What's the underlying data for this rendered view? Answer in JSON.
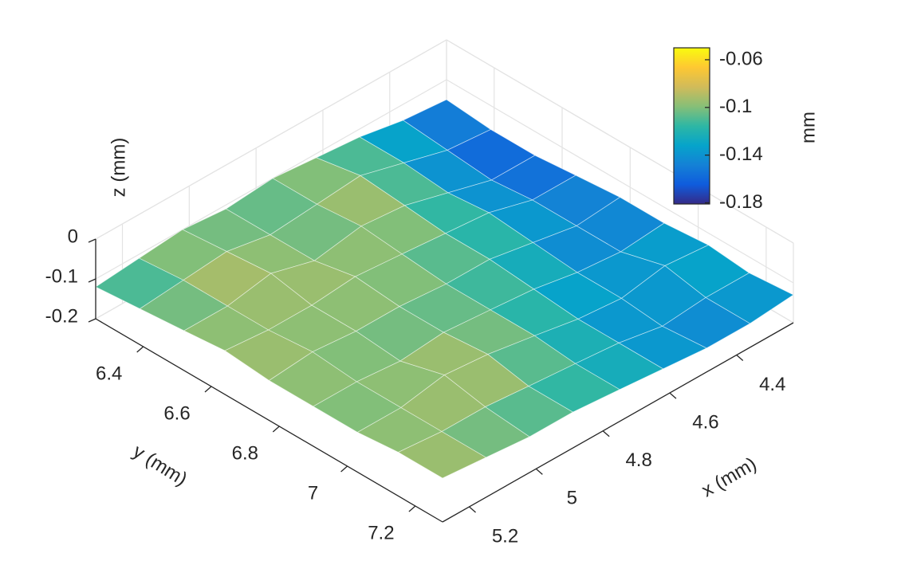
{
  "chart_data": {
    "type": "surface",
    "xlabel": "x (mm)",
    "ylabel": "y (mm)",
    "zlabel": "z (mm)",
    "xlim": [
      4.23,
      5.28
    ],
    "ylim": [
      6.26,
      7.28
    ],
    "zlim": [
      -0.2,
      0
    ],
    "xticks": [
      4.4,
      4.6,
      4.8,
      5,
      5.2
    ],
    "yticks": [
      6.4,
      6.6,
      6.8,
      7,
      7.2
    ],
    "zticks": [
      -0.2,
      -0.1,
      0
    ],
    "grid": true,
    "colormap": "parula",
    "colorbar": {
      "label": "mm",
      "clim": [
        -0.181,
        -0.05
      ],
      "ticks": [
        -0.18,
        -0.14,
        -0.1,
        -0.06
      ]
    },
    "x": [
      4.23,
      4.36,
      4.49,
      4.62,
      4.75,
      4.89,
      5.02,
      5.15,
      5.28
    ],
    "y": [
      6.26,
      6.39,
      6.52,
      6.64,
      6.77,
      6.9,
      7.03,
      7.15,
      7.28
    ],
    "z": [
      [
        -0.15,
        -0.14,
        -0.12,
        -0.11,
        -0.1,
        -0.11,
        -0.1,
        -0.11,
        -0.12
      ],
      [
        -0.16,
        -0.15,
        -0.12,
        -0.09,
        -0.1,
        -0.11,
        -0.09,
        -0.1,
        -0.11
      ],
      [
        -0.16,
        -0.16,
        -0.13,
        -0.1,
        -0.09,
        -0.11,
        -0.08,
        -0.1,
        -0.1
      ],
      [
        -0.15,
        -0.15,
        -0.12,
        -0.11,
        -0.1,
        -0.09,
        -0.1,
        -0.1,
        -0.09
      ],
      [
        -0.14,
        -0.15,
        -0.13,
        -0.11,
        -0.11,
        -0.1,
        -0.1,
        -0.09,
        -0.1
      ],
      [
        -0.14,
        -0.15,
        -0.14,
        -0.12,
        -0.11,
        -0.1,
        -0.11,
        -0.1,
        -0.1
      ],
      [
        -0.13,
        -0.12,
        -0.14,
        -0.13,
        -0.11,
        -0.09,
        -0.08,
        -0.1,
        -0.1
      ],
      [
        -0.14,
        -0.14,
        -0.15,
        -0.13,
        -0.12,
        -0.11,
        -0.1,
        -0.1,
        -0.09
      ],
      [
        -0.13,
        -0.14,
        -0.14,
        -0.13,
        -0.12,
        -0.11,
        -0.11,
        -0.1,
        -0.09
      ]
    ]
  }
}
